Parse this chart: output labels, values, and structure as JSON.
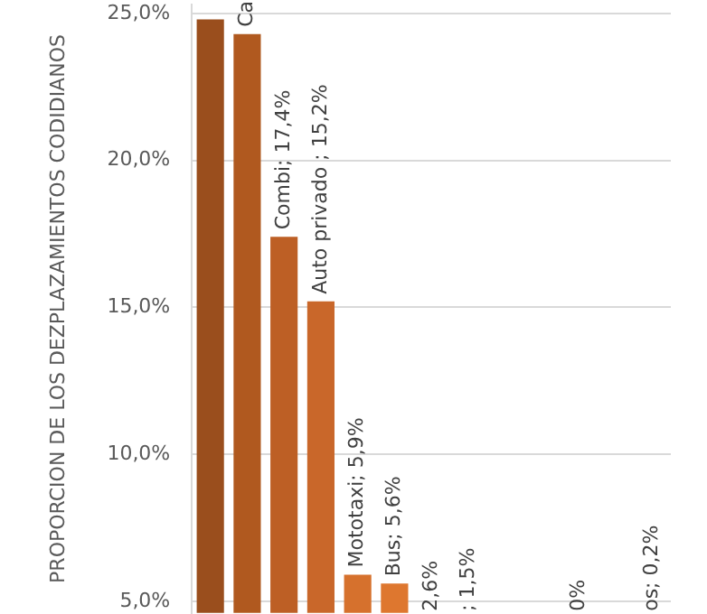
{
  "chart_data": {
    "type": "bar",
    "ylabel": "PROPORCION DE LOS DEZPLAZAMIENTOS CODIDIANOS",
    "categories": [
      null,
      null,
      null,
      null,
      null,
      null,
      null,
      null,
      null,
      null,
      null,
      null,
      null
    ],
    "values": [
      24.8,
      24.3,
      17.4,
      15.2,
      5.9,
      5.6,
      null,
      null,
      null,
      null,
      null,
      null,
      null
    ],
    "colors": [
      "#9a4e1d",
      "#b0591f",
      "#bd5f25",
      "#c9672a",
      "#d6712d",
      "#de772f",
      "#e07b31",
      "#e07b31",
      "#e07b31",
      "#e07b31",
      "#e07b31",
      "#e07b31",
      "#e07b31"
    ],
    "value_labels": [
      null,
      "Ca",
      "Combi; 17,4%",
      "Auto privado ; 15,2%",
      "Mototaxi; 5,9%",
      "Bus; 5,6%",
      "2,6%",
      "; 1,5%",
      null,
      null,
      "0%",
      null,
      "os; 0,2%"
    ],
    "ylim": [
      4.6,
      25.3
    ],
    "yticks": [
      {
        "value": 5,
        "label": "5,0%"
      },
      {
        "value": 10,
        "label": "10,0%"
      },
      {
        "value": 15,
        "label": "15,0%"
      },
      {
        "value": 20,
        "label": "20,0%"
      },
      {
        "value": 25,
        "label": "25,0%"
      }
    ],
    "grid": "y",
    "tick_labels": "y",
    "legend": false
  }
}
